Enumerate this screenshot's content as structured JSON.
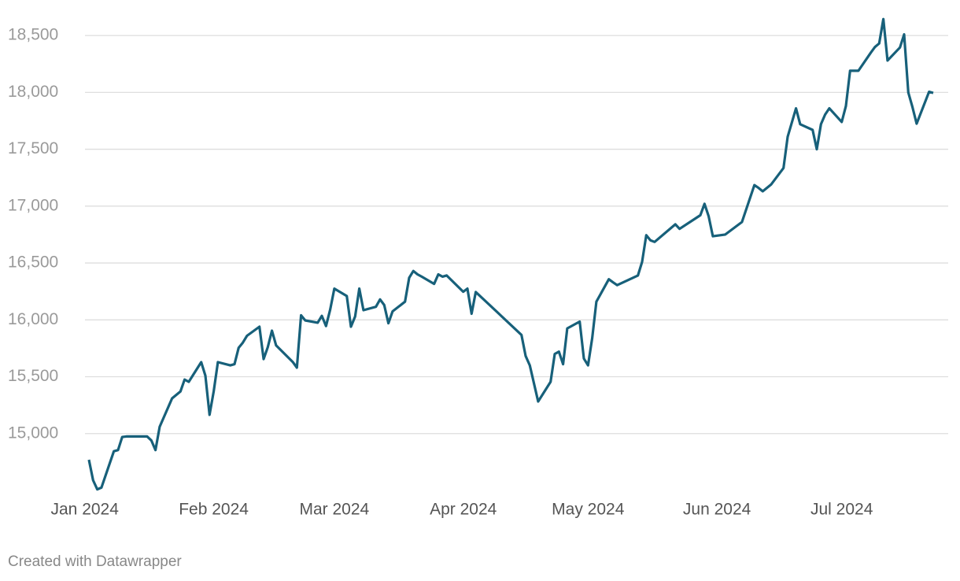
{
  "chart_data": {
    "type": "line",
    "credit": "Created with Datawrapper",
    "color": "#17607a",
    "grid": true,
    "x": [
      "2024-01-02",
      "2024-01-03",
      "2024-01-04",
      "2024-01-05",
      "2024-01-08",
      "2024-01-09",
      "2024-01-10",
      "2024-01-11",
      "2024-01-12",
      "2024-01-16",
      "2024-01-17",
      "2024-01-18",
      "2024-01-19",
      "2024-01-22",
      "2024-01-23",
      "2024-01-24",
      "2024-01-25",
      "2024-01-26",
      "2024-01-29",
      "2024-01-30",
      "2024-01-31",
      "2024-02-01",
      "2024-02-02",
      "2024-02-05",
      "2024-02-06",
      "2024-02-07",
      "2024-02-08",
      "2024-02-09",
      "2024-02-12",
      "2024-02-13",
      "2024-02-14",
      "2024-02-15",
      "2024-02-16",
      "2024-02-20",
      "2024-02-21",
      "2024-02-22",
      "2024-02-23",
      "2024-02-26",
      "2024-02-27",
      "2024-02-28",
      "2024-02-29",
      "2024-03-01",
      "2024-03-04",
      "2024-03-05",
      "2024-03-06",
      "2024-03-07",
      "2024-03-08",
      "2024-03-11",
      "2024-03-12",
      "2024-03-13",
      "2024-03-14",
      "2024-03-15",
      "2024-03-18",
      "2024-03-19",
      "2024-03-20",
      "2024-03-21",
      "2024-03-22",
      "2024-03-25",
      "2024-03-26",
      "2024-03-27",
      "2024-03-28",
      "2024-04-01",
      "2024-04-02",
      "2024-04-03",
      "2024-04-04",
      "2024-04-15",
      "2024-04-16",
      "2024-04-17",
      "2024-04-19",
      "2024-04-22",
      "2024-04-23",
      "2024-04-24",
      "2024-04-25",
      "2024-04-26",
      "2024-04-29",
      "2024-04-30",
      "2024-05-01",
      "2024-05-02",
      "2024-05-03",
      "2024-05-06",
      "2024-05-07",
      "2024-05-08",
      "2024-05-13",
      "2024-05-14",
      "2024-05-15",
      "2024-05-16",
      "2024-05-17",
      "2024-05-22",
      "2024-05-23",
      "2024-05-28",
      "2024-05-29",
      "2024-05-30",
      "2024-05-31",
      "2024-06-03",
      "2024-06-07",
      "2024-06-10",
      "2024-06-11",
      "2024-06-12",
      "2024-06-14",
      "2024-06-17",
      "2024-06-18",
      "2024-06-20",
      "2024-06-21",
      "2024-06-24",
      "2024-06-25",
      "2024-06-26",
      "2024-06-27",
      "2024-06-28",
      "2024-07-01",
      "2024-07-02",
      "2024-07-03",
      "2024-07-05",
      "2024-07-08",
      "2024-07-09",
      "2024-07-10",
      "2024-07-11",
      "2024-07-12",
      "2024-07-15",
      "2024-07-16",
      "2024-07-17",
      "2024-07-18",
      "2024-07-19",
      "2024-07-22",
      "2024-07-23"
    ],
    "values": [
      14770,
      14590,
      14510,
      14525,
      14845,
      14855,
      14970,
      14975,
      14975,
      14975,
      14940,
      14855,
      15060,
      15310,
      15340,
      15370,
      15475,
      15455,
      15628,
      15510,
      15165,
      15372,
      15628,
      15600,
      15610,
      15755,
      15800,
      15860,
      15940,
      15655,
      15760,
      15905,
      15775,
      15630,
      15580,
      16040,
      15995,
      15975,
      16035,
      15945,
      16090,
      16275,
      16210,
      15940,
      16030,
      16275,
      16085,
      16115,
      16180,
      16130,
      15970,
      16075,
      16160,
      16370,
      16430,
      16400,
      16380,
      16316,
      16400,
      16380,
      16390,
      16247,
      16275,
      16054,
      16245,
      15868,
      15682,
      15600,
      15282,
      15455,
      15700,
      15720,
      15610,
      15925,
      15985,
      15660,
      15600,
      15840,
      16160,
      16357,
      16330,
      16305,
      16390,
      16510,
      16745,
      16700,
      16685,
      16840,
      16800,
      16920,
      17020,
      16910,
      16735,
      16750,
      16860,
      17185,
      17160,
      17130,
      17190,
      17335,
      17610,
      17860,
      17720,
      17670,
      17500,
      17720,
      17805,
      17860,
      17740,
      17880,
      18190,
      18190,
      18350,
      18400,
      18430,
      18645,
      18280,
      18395,
      18510,
      18000,
      17870,
      17725,
      18005,
      17995
    ],
    "xlim": [
      "2024-01-02",
      "2024-07-23"
    ],
    "xticks": [
      {
        "value": "2024-01-01",
        "label": "Jan 2024"
      },
      {
        "value": "2024-02-01",
        "label": "Feb 2024"
      },
      {
        "value": "2024-03-01",
        "label": "Mar 2024"
      },
      {
        "value": "2024-04-01",
        "label": "Apr 2024"
      },
      {
        "value": "2024-05-01",
        "label": "May 2024"
      },
      {
        "value": "2024-06-01",
        "label": "Jun 2024"
      },
      {
        "value": "2024-07-01",
        "label": "Jul 2024"
      }
    ],
    "ylim": [
      14500,
      18660
    ],
    "yticks": [
      {
        "value": 15000,
        "label": "15,000"
      },
      {
        "value": 15500,
        "label": "15,500"
      },
      {
        "value": 16000,
        "label": "16,000"
      },
      {
        "value": 16500,
        "label": "16,500"
      },
      {
        "value": 17000,
        "label": "17,000"
      },
      {
        "value": 17500,
        "label": "17,500"
      },
      {
        "value": 18000,
        "label": "18,000"
      },
      {
        "value": 18500,
        "label": "18,500"
      }
    ]
  }
}
